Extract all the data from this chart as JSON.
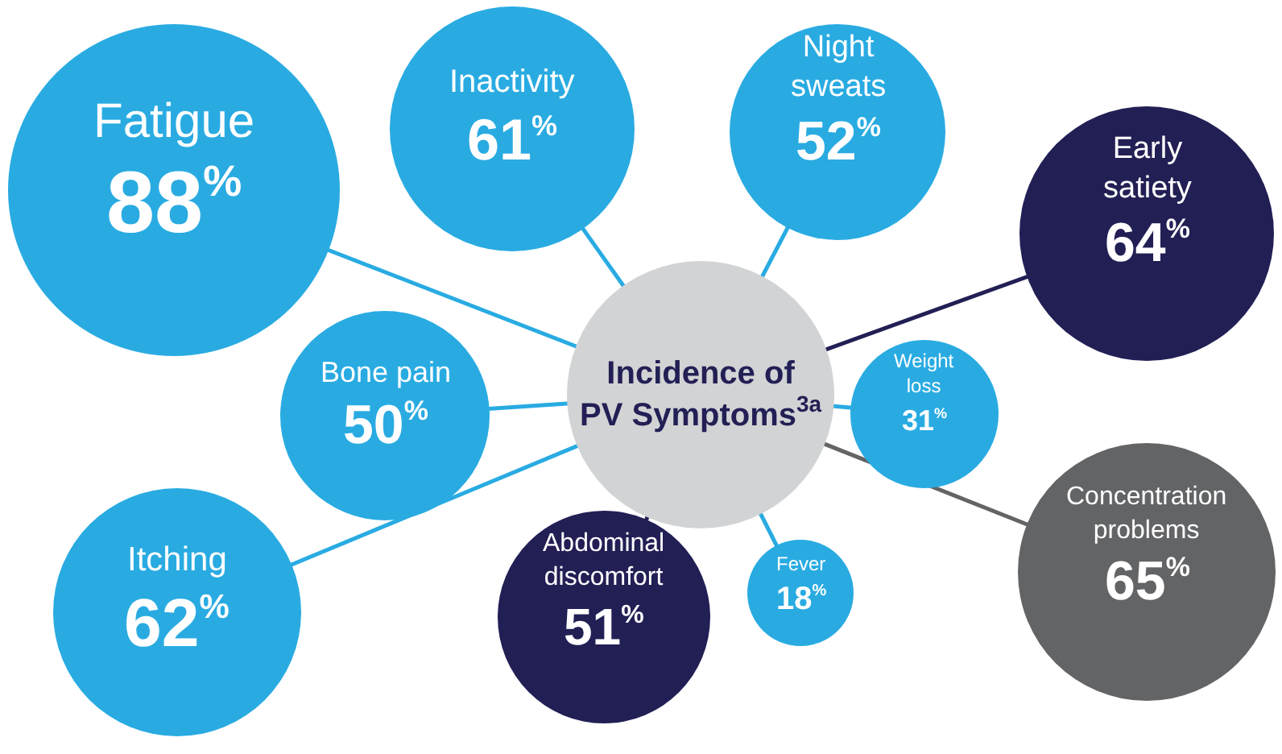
{
  "chart_data": {
    "type": "other",
    "title": "Incidence of PV Symptoms$^{3a}$",
    "categories": [
      "Fatigue",
      "Inactivity",
      "Night sweats",
      "Early satiety",
      "Bone pain",
      "Weight loss",
      "Itching",
      "Abdominal discomfort",
      "Fever",
      "Concentration problems"
    ],
    "values": [
      88,
      61,
      52,
      64,
      50,
      31,
      62,
      51,
      18,
      65
    ],
    "value_labels": [
      "88$^{%}$",
      "61$^{%}$",
      "52$^{%}$",
      "64$^{%}$",
      "50$^{%}$",
      "31$^{%}$",
      "62$^{%}$",
      "51$^{%}$",
      "18$^{%}$",
      "65$^{%}$"
    ],
    "colors": [
      "#29abe2",
      "#29abe2",
      "#29abe2",
      "#221f55",
      "#29abe2",
      "#29abe2",
      "#29abe2",
      "#221f55",
      "#29abe2",
      "#636466"
    ]
  }
}
